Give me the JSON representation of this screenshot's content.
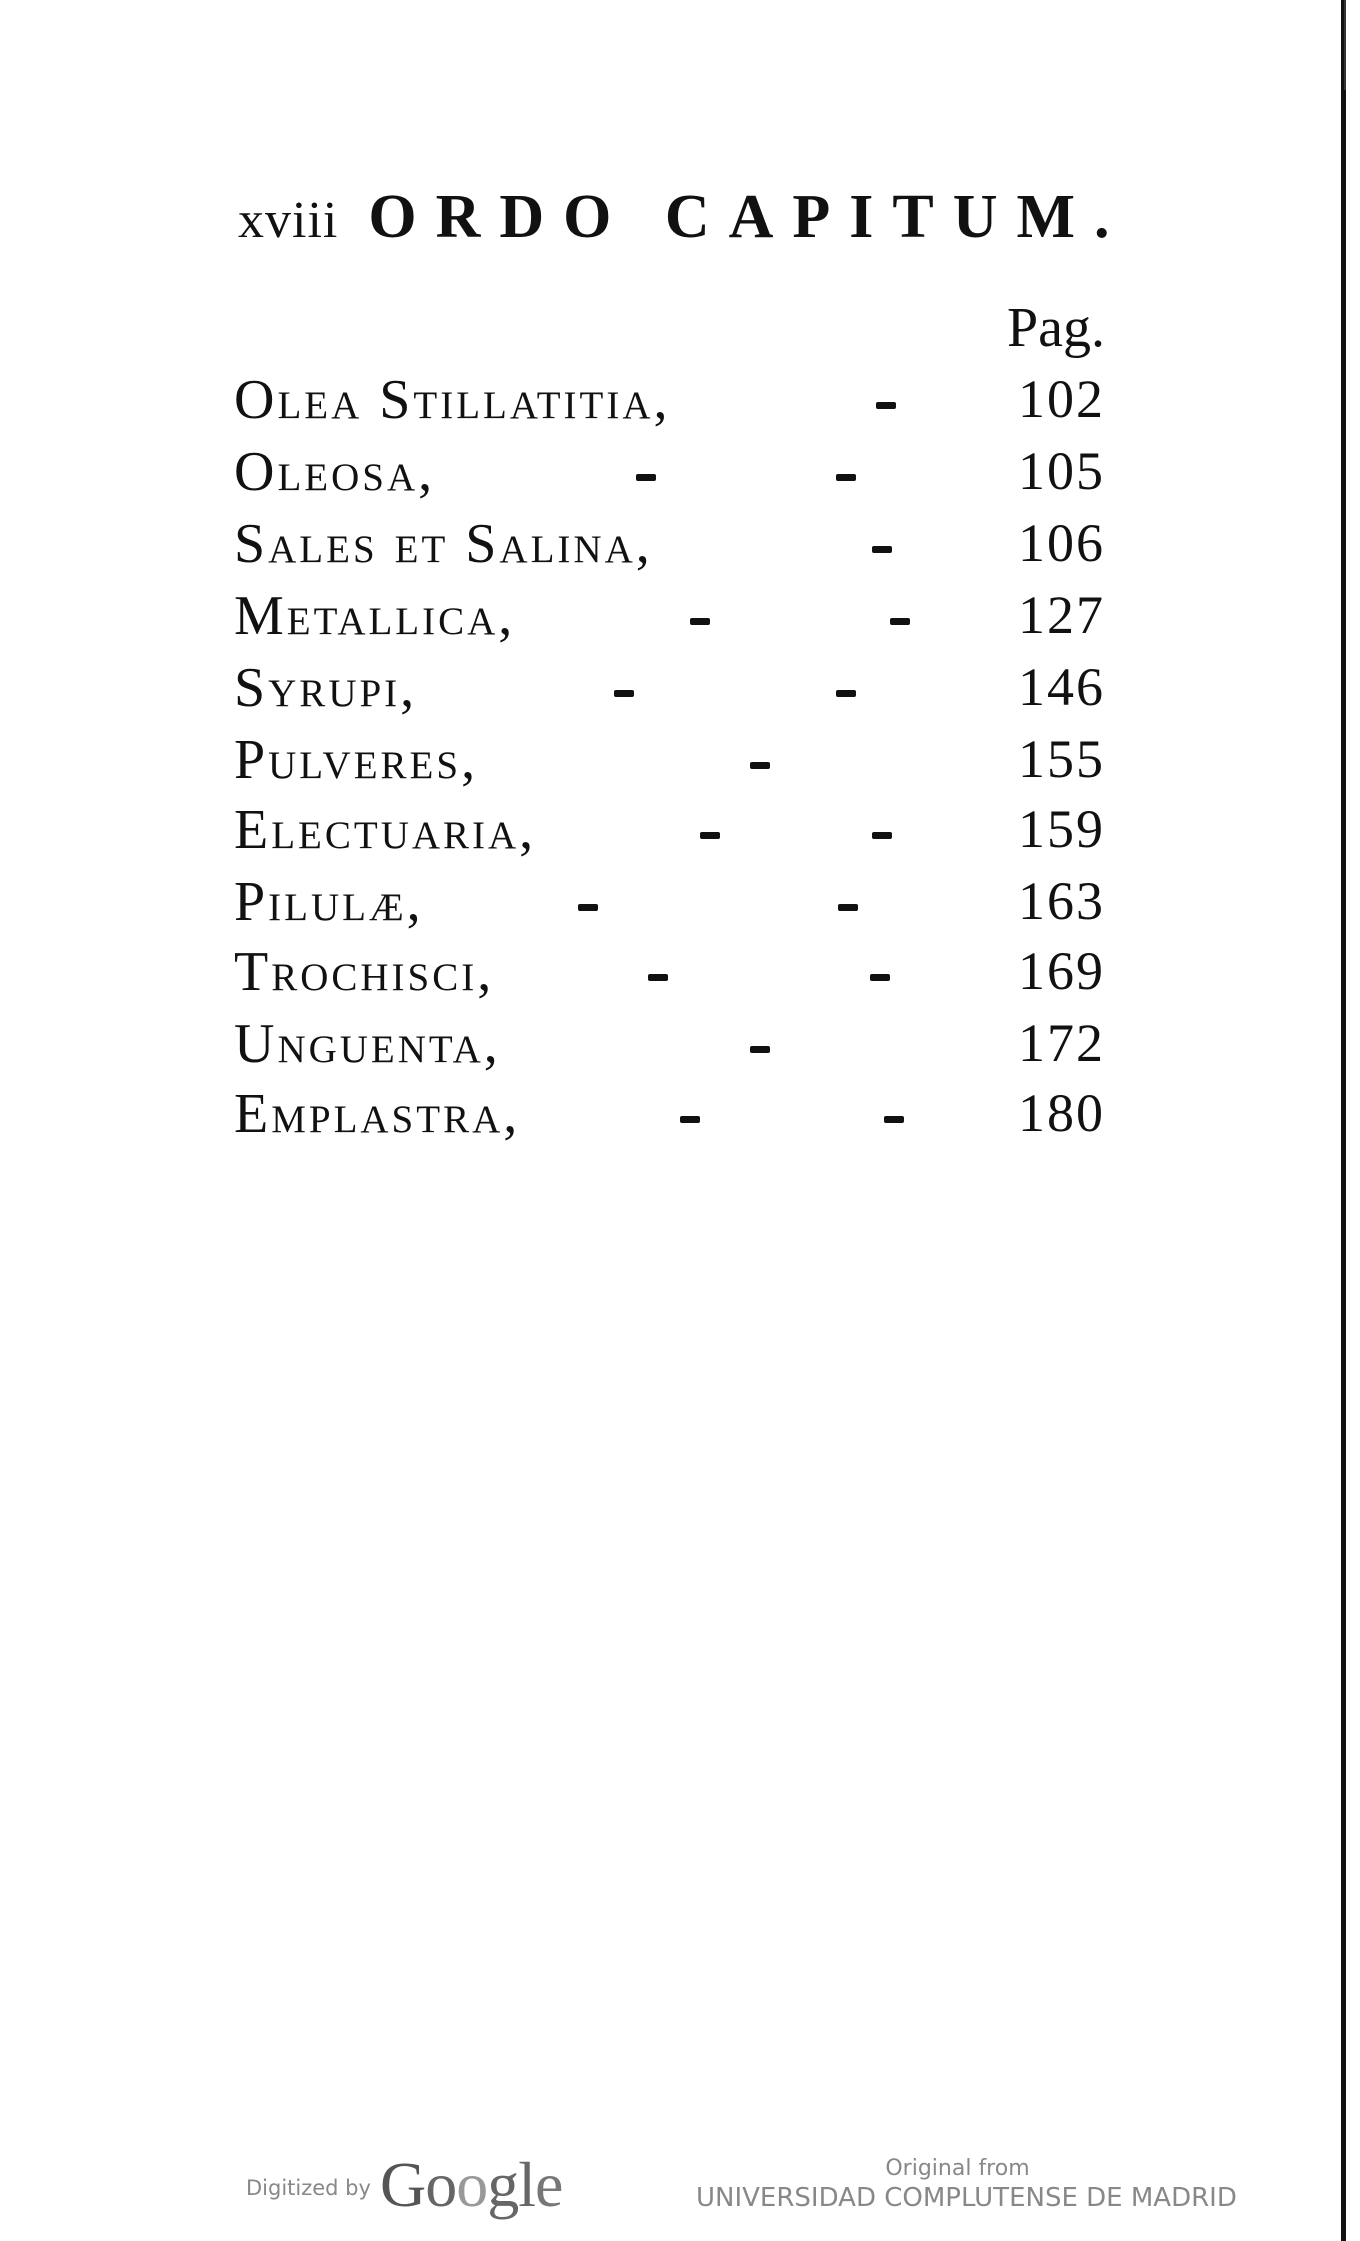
{
  "header": {
    "page_number": "xviii",
    "title": "ORDO CAPITUM."
  },
  "column_label": "Pag.",
  "entries": [
    {
      "title": "Olea Stillatitia,",
      "page": "102",
      "dashes": 1
    },
    {
      "title": "Oleosa,",
      "page": "105",
      "dashes": 2
    },
    {
      "title": "Sales et Salina,",
      "page": "106",
      "dashes": 1
    },
    {
      "title": "Metallica,",
      "page": "127",
      "dashes": 2
    },
    {
      "title": "Syrupi,",
      "page": "146",
      "dashes": 2
    },
    {
      "title": "Pulveres,",
      "page": "155",
      "dashes": 1
    },
    {
      "title": "Electuaria,",
      "page": "159",
      "dashes": 2
    },
    {
      "title": "Pilulæ,",
      "page": "163",
      "dashes": 2
    },
    {
      "title": "Trochisci,",
      "page": "169",
      "dashes": 2
    },
    {
      "title": "Unguenta,",
      "page": "172",
      "dashes": 1
    },
    {
      "title": "Emplastra,",
      "page": "180",
      "dashes": 2
    }
  ],
  "footer": {
    "digitized_by": "Digitized by",
    "logo": "Google",
    "original_from": "Original from",
    "institution": "UNIVERSIDAD COMPLUTENSE DE MADRID"
  }
}
